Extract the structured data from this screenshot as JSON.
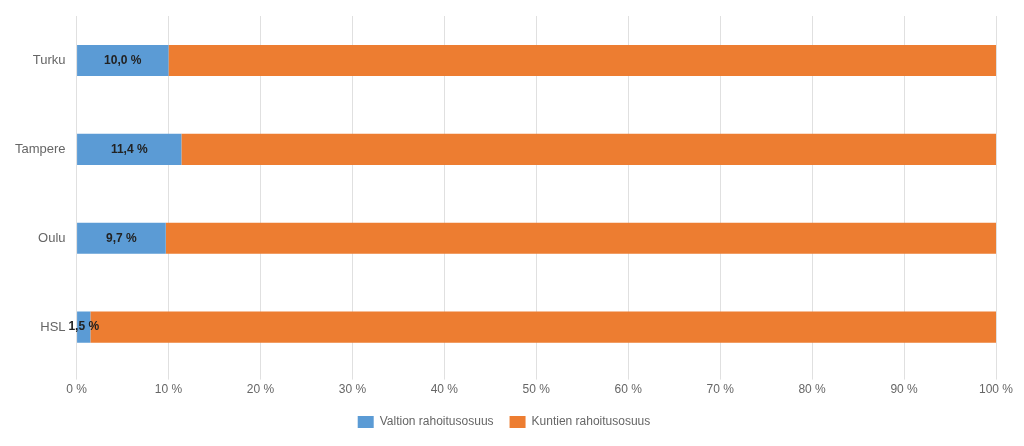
{
  "chart_data": {
    "type": "bar",
    "orientation": "horizontal",
    "stacked": true,
    "categories": [
      "HSL",
      "Oulu",
      "Tampere",
      "Turku"
    ],
    "series": [
      {
        "name": "Valtion rahoitusosuus",
        "color": "#5B9BD5",
        "values": [
          1.5,
          9.7,
          11.4,
          10.0
        ],
        "data_labels": true,
        "value_labels": [
          "1,5 %",
          "9,7 %",
          "11,4 %",
          "10,0 %"
        ]
      },
      {
        "name": "Kuntien rahoitusosuus",
        "color": "#ED7D31",
        "values": [
          98.5,
          90.3,
          88.6,
          90.0
        ]
      }
    ],
    "xlim": [
      0,
      100
    ],
    "xticks": [
      {
        "value": 0,
        "label": "0 %"
      },
      {
        "value": 10,
        "label": "10 %"
      },
      {
        "value": 20,
        "label": "20 %"
      },
      {
        "value": 30,
        "label": "30 %"
      },
      {
        "value": 40,
        "label": "40 %"
      },
      {
        "value": 50,
        "label": "50 %"
      },
      {
        "value": 60,
        "label": "60 %"
      },
      {
        "value": 70,
        "label": "70 %"
      },
      {
        "value": 80,
        "label": "80 %"
      },
      {
        "value": 90,
        "label": "90 %"
      },
      {
        "value": 100,
        "label": "100 %"
      }
    ],
    "grid": "x",
    "legend": "bottom"
  }
}
